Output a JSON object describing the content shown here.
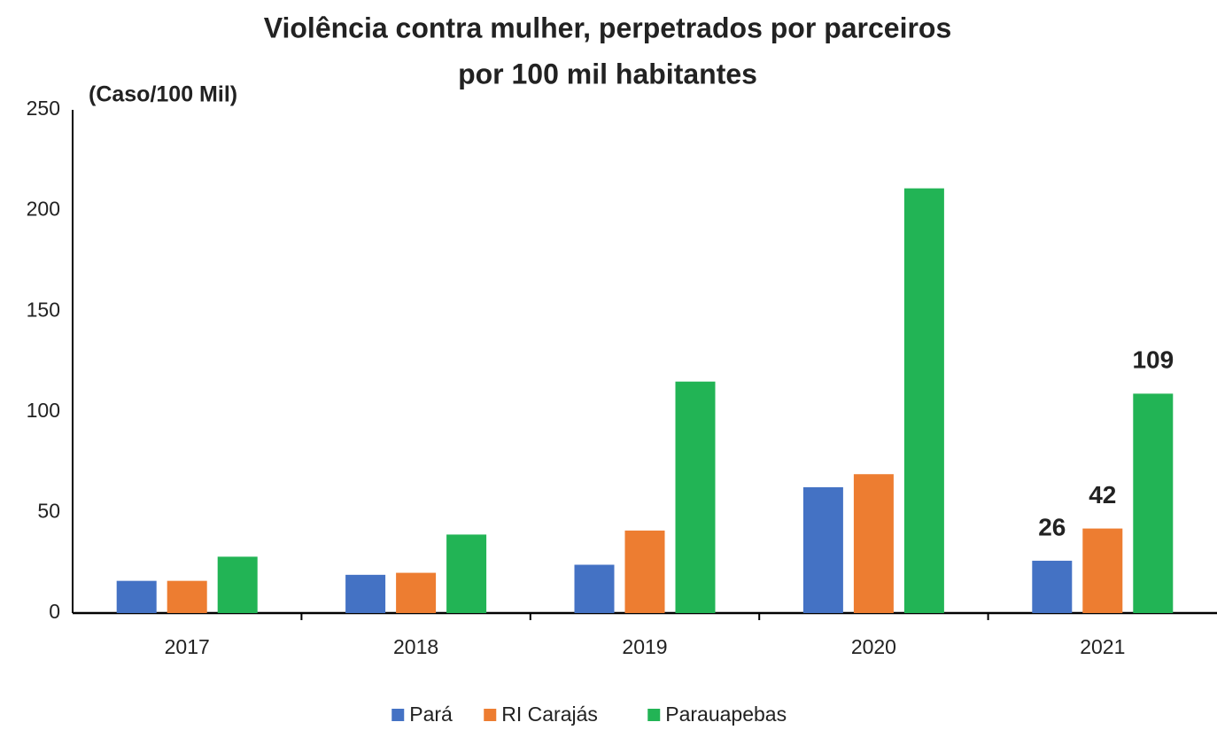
{
  "chart_data": {
    "type": "bar",
    "title": [
      "Violência contra mulher, perpetrados por parceiros",
      "por 100 mil habitantes"
    ],
    "y_label": "(Caso/100 Mil)",
    "categories": [
      "2017",
      "2018",
      "2019",
      "2020",
      "2021"
    ],
    "series": [
      {
        "name": "Pará",
        "color": "#4472c4",
        "values": [
          16,
          19,
          24,
          62.5,
          26
        ],
        "value_labels": [
          null,
          null,
          null,
          null,
          "26"
        ]
      },
      {
        "name": "RI Carajás",
        "color": "#ed7d31",
        "values": [
          16,
          20,
          41,
          69,
          42
        ],
        "value_labels": [
          null,
          null,
          null,
          null,
          "42"
        ]
      },
      {
        "name": "Parauapebas",
        "color": "#22b455",
        "values": [
          28,
          39,
          115,
          211,
          109
        ],
        "value_labels": [
          null,
          null,
          null,
          null,
          "109"
        ]
      }
    ],
    "ylim": [
      0,
      250
    ],
    "yticks": [
      0,
      50,
      100,
      150,
      200,
      250
    ],
    "grid": false,
    "legend": "bottom"
  }
}
